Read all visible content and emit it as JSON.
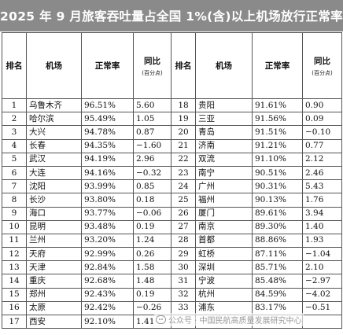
{
  "title": "2025 年 9 月旅客吞吐量占全国 1%(含)以上机场放行正常率",
  "headers": {
    "rank": "排名",
    "airport": "机场",
    "rate": "正常率",
    "yoy": "同比",
    "yoy_unit": "(百分点)"
  },
  "rows": [
    {
      "left": {
        "rank": "1",
        "airport": "乌鲁木齐",
        "rate": "96.51%",
        "yoy": "5.60"
      },
      "right": {
        "rank": "18",
        "airport": "贵阳",
        "rate": "91.61%",
        "yoy": "0.90"
      }
    },
    {
      "left": {
        "rank": "2",
        "airport": "哈尔滨",
        "rate": "95.49%",
        "yoy": "1.05"
      },
      "right": {
        "rank": "19",
        "airport": "三亚",
        "rate": "91.56%",
        "yoy": "0.09"
      }
    },
    {
      "left": {
        "rank": "3",
        "airport": "大兴",
        "rate": "94.78%",
        "yoy": "0.87"
      },
      "right": {
        "rank": "20",
        "airport": "青岛",
        "rate": "91.51%",
        "yoy": "−0.10"
      }
    },
    {
      "left": {
        "rank": "4",
        "airport": "长春",
        "rate": "94.35%",
        "yoy": "−1.60"
      },
      "right": {
        "rank": "21",
        "airport": "济南",
        "rate": "91.21%",
        "yoy": "0.77"
      }
    },
    {
      "left": {
        "rank": "5",
        "airport": "武汉",
        "rate": "94.19%",
        "yoy": "2.96"
      },
      "right": {
        "rank": "22",
        "airport": "双流",
        "rate": "91.10%",
        "yoy": "2.12"
      }
    },
    {
      "left": {
        "rank": "6",
        "airport": "大连",
        "rate": "94.16%",
        "yoy": "−0.32"
      },
      "right": {
        "rank": "23",
        "airport": "南宁",
        "rate": "90.51%",
        "yoy": "2.46"
      }
    },
    {
      "left": {
        "rank": "7",
        "airport": "沈阳",
        "rate": "93.99%",
        "yoy": "0.85"
      },
      "right": {
        "rank": "24",
        "airport": "广州",
        "rate": "90.31%",
        "yoy": "5.43"
      }
    },
    {
      "left": {
        "rank": "8",
        "airport": "长沙",
        "rate": "93.80%",
        "yoy": "0.18"
      },
      "right": {
        "rank": "25",
        "airport": "福州",
        "rate": "90.13%",
        "yoy": "1.76"
      }
    },
    {
      "left": {
        "rank": "9",
        "airport": "海口",
        "rate": "93.77%",
        "yoy": "−0.06"
      },
      "right": {
        "rank": "26",
        "airport": "厦门",
        "rate": "89.61%",
        "yoy": "3.94"
      }
    },
    {
      "left": {
        "rank": "10",
        "airport": "昆明",
        "rate": "93.48%",
        "yoy": "0.19"
      },
      "right": {
        "rank": "27",
        "airport": "南京",
        "rate": "89.30%",
        "yoy": "1.40"
      }
    },
    {
      "left": {
        "rank": "11",
        "airport": "兰州",
        "rate": "93.20%",
        "yoy": "1.24"
      },
      "right": {
        "rank": "28",
        "airport": "首都",
        "rate": "88.86%",
        "yoy": "1.93"
      }
    },
    {
      "left": {
        "rank": "12",
        "airport": "天府",
        "rate": "92.99%",
        "yoy": "0.26"
      },
      "right": {
        "rank": "29",
        "airport": "虹桥",
        "rate": "87.11%",
        "yoy": "−1.04"
      }
    },
    {
      "left": {
        "rank": "13",
        "airport": "天津",
        "rate": "92.84%",
        "yoy": "1.58"
      },
      "right": {
        "rank": "30",
        "airport": "深圳",
        "rate": "85.71%",
        "yoy": "2.10"
      }
    },
    {
      "left": {
        "rank": "14",
        "airport": "重庆",
        "rate": "92.68%",
        "yoy": "1.48"
      },
      "right": {
        "rank": "31",
        "airport": "宁波",
        "rate": "85.48%",
        "yoy": "−2.97"
      }
    },
    {
      "left": {
        "rank": "15",
        "airport": "郑州",
        "rate": "92.43%",
        "yoy": "0.19"
      },
      "right": {
        "rank": "32",
        "airport": "杭州",
        "rate": "84.59%",
        "yoy": "−4.02"
      }
    },
    {
      "left": {
        "rank": "16",
        "airport": "太原",
        "rate": "92.42%",
        "yoy": "−0.26"
      },
      "right": {
        "rank": "33",
        "airport": "浦东",
        "rate": "83.17%",
        "yoy": "−0.51"
      }
    },
    {
      "left": {
        "rank": "17",
        "airport": "西安",
        "rate": "92.10%",
        "yoy": "1.41"
      },
      "right": {
        "rank": "",
        "airport": "",
        "rate": "",
        "yoy": ""
      }
    }
  ],
  "watermark": {
    "icon": "wechat-icon",
    "text": "公众号 · 中国民航高质量发展研究中心"
  }
}
